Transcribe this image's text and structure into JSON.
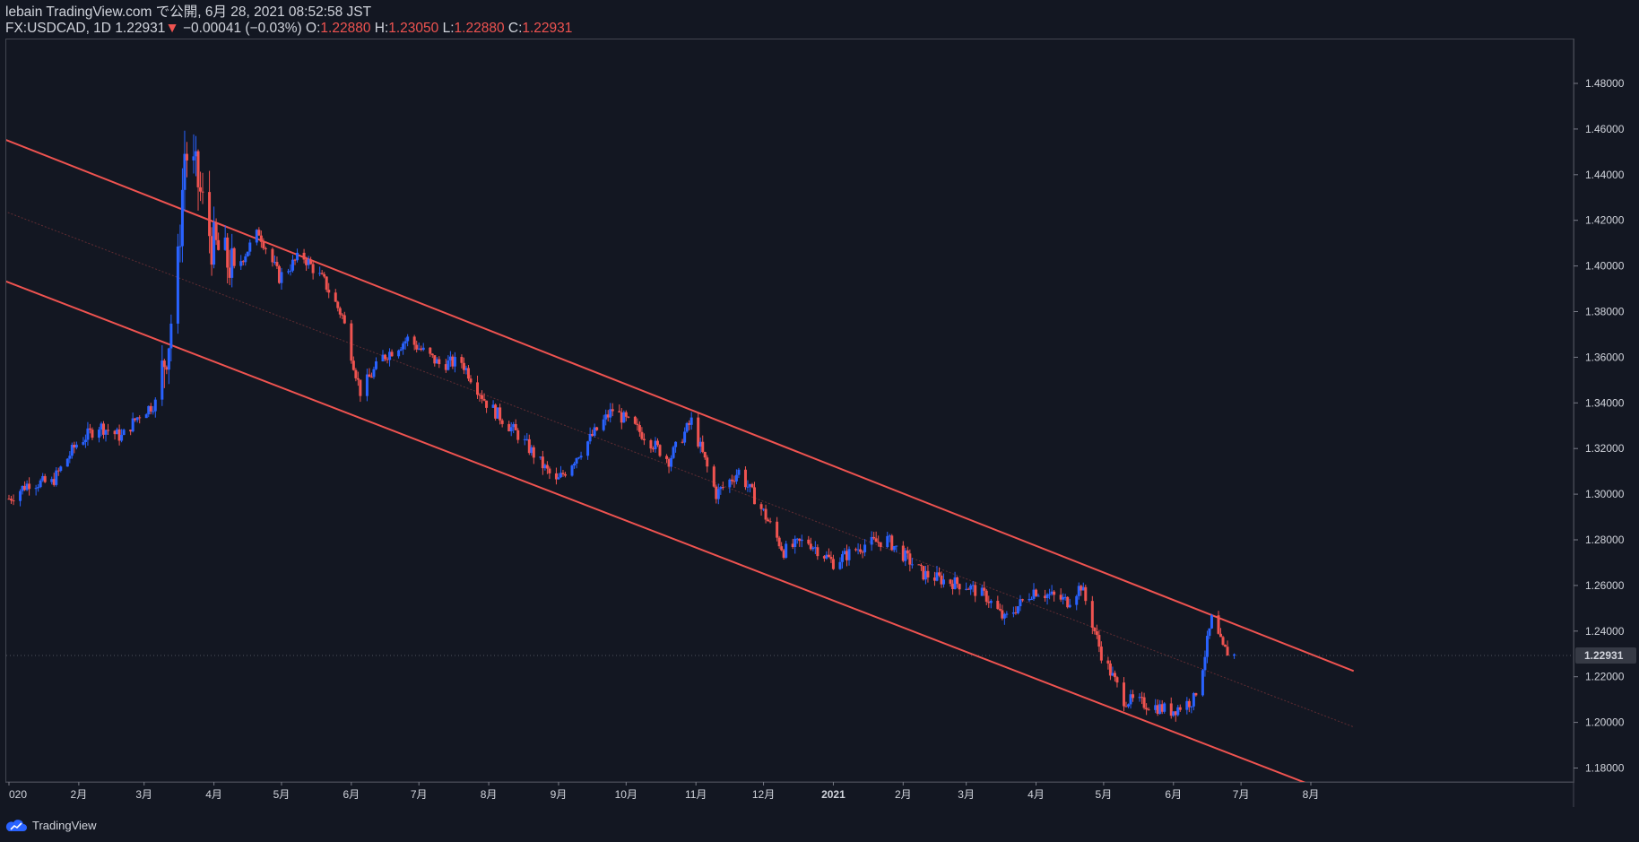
{
  "header": {
    "published": "lebain TradingView.com で公開, 6月 28, 2021 08:52:58 JST",
    "symbol": "FX:USDCAD, 1D",
    "last": "1.22931",
    "down_arrow": "▼",
    "change": "−0.00041 (−0.03%)",
    "o_label": "O:",
    "o_value": "1.22880",
    "h_label": "H:",
    "h_value": "1.23050",
    "l_label": "L:",
    "l_value": "1.22880",
    "c_label": "C:",
    "c_value": "1.22931"
  },
  "footer": {
    "brand": "TradingView",
    "logo_icon": "tradingview-cloud-icon"
  },
  "colors": {
    "up": "#2962ff",
    "down": "#ef5350",
    "channel": "#ef5350",
    "background": "#131722",
    "text": "#d1d4dc",
    "price_tag": "#363a45"
  },
  "chart_data": {
    "type": "candlestick",
    "symbol": "FX:USDCAD",
    "interval": "1D",
    "ylim": [
      1.17,
      1.49
    ],
    "y_ticks": [
      "1.48000",
      "1.46000",
      "1.44000",
      "1.42000",
      "1.40000",
      "1.38000",
      "1.36000",
      "1.34000",
      "1.32000",
      "1.30000",
      "1.28000",
      "1.26000",
      "1.24000",
      "1.22000",
      "1.20000",
      "1.18000"
    ],
    "x_ticks": [
      {
        "label": "020",
        "date": "2020-01-01"
      },
      {
        "label": "2月",
        "date": "2020-02-01"
      },
      {
        "label": "3月",
        "date": "2020-03-01"
      },
      {
        "label": "4月",
        "date": "2020-04-01"
      },
      {
        "label": "5月",
        "date": "2020-05-01"
      },
      {
        "label": "6月",
        "date": "2020-06-01"
      },
      {
        "label": "7月",
        "date": "2020-07-01"
      },
      {
        "label": "8月",
        "date": "2020-08-01"
      },
      {
        "label": "9月",
        "date": "2020-09-01"
      },
      {
        "label": "10月",
        "date": "2020-10-01"
      },
      {
        "label": "11月",
        "date": "2020-11-01"
      },
      {
        "label": "12月",
        "date": "2020-12-01"
      },
      {
        "label": "2021",
        "date": "2021-01-01"
      },
      {
        "label": "2月",
        "date": "2021-02-01"
      },
      {
        "label": "3月",
        "date": "2021-03-01"
      },
      {
        "label": "4月",
        "date": "2021-04-01"
      },
      {
        "label": "5月",
        "date": "2021-05-01"
      },
      {
        "label": "6月",
        "date": "2021-06-01"
      },
      {
        "label": "7月",
        "date": "2021-07-01"
      },
      {
        "label": "8月",
        "date": "2021-08-01"
      }
    ],
    "close_path": [
      [
        "2020-01-01",
        1.298
      ],
      [
        "2020-01-10",
        1.305
      ],
      [
        "2020-01-20",
        1.305
      ],
      [
        "2020-01-31",
        1.322
      ],
      [
        "2020-02-10",
        1.33
      ],
      [
        "2020-02-20",
        1.325
      ],
      [
        "2020-02-28",
        1.335
      ],
      [
        "2020-03-06",
        1.34
      ],
      [
        "2020-03-12",
        1.368
      ],
      [
        "2020-03-16",
        1.4
      ],
      [
        "2020-03-19",
        1.45
      ],
      [
        "2020-03-24",
        1.44
      ],
      [
        "2020-03-31",
        1.41
      ],
      [
        "2020-04-10",
        1.398
      ],
      [
        "2020-04-21",
        1.415
      ],
      [
        "2020-04-30",
        1.395
      ],
      [
        "2020-05-10",
        1.405
      ],
      [
        "2020-05-20",
        1.393
      ],
      [
        "2020-05-28",
        1.378
      ],
      [
        "2020-06-05",
        1.345
      ],
      [
        "2020-06-15",
        1.36
      ],
      [
        "2020-06-26",
        1.368
      ],
      [
        "2020-07-10",
        1.357
      ],
      [
        "2020-07-20",
        1.358
      ],
      [
        "2020-07-31",
        1.34
      ],
      [
        "2020-08-15",
        1.325
      ],
      [
        "2020-08-31",
        1.305
      ],
      [
        "2020-09-10",
        1.318
      ],
      [
        "2020-09-25",
        1.337
      ],
      [
        "2020-10-10",
        1.325
      ],
      [
        "2020-10-20",
        1.315
      ],
      [
        "2020-10-30",
        1.332
      ],
      [
        "2020-11-10",
        1.3
      ],
      [
        "2020-11-20",
        1.31
      ],
      [
        "2020-12-01",
        1.292
      ],
      [
        "2020-12-10",
        1.275
      ],
      [
        "2020-12-20",
        1.28
      ],
      [
        "2021-01-01",
        1.27
      ],
      [
        "2021-01-15",
        1.278
      ],
      [
        "2021-01-25",
        1.28
      ],
      [
        "2021-02-10",
        1.265
      ],
      [
        "2021-02-20",
        1.262
      ],
      [
        "2021-03-01",
        1.26
      ],
      [
        "2021-03-10",
        1.255
      ],
      [
        "2021-03-18",
        1.245
      ],
      [
        "2021-03-31",
        1.258
      ],
      [
        "2021-04-15",
        1.253
      ],
      [
        "2021-04-21",
        1.26
      ],
      [
        "2021-04-30",
        1.23
      ],
      [
        "2021-05-10",
        1.21
      ],
      [
        "2021-05-20",
        1.208
      ],
      [
        "2021-05-31",
        1.205
      ],
      [
        "2021-06-10",
        1.21
      ],
      [
        "2021-06-14",
        1.225
      ],
      [
        "2021-06-18",
        1.245
      ],
      [
        "2021-06-23",
        1.232
      ],
      [
        "2021-06-28",
        1.22931
      ]
    ],
    "channel": {
      "upper": [
        [
          "2019-12-30",
          1.4555
        ],
        [
          "2021-08-20",
          1.2225
        ]
      ],
      "lower": [
        [
          "2019-12-30",
          1.3935
        ],
        [
          "2021-07-31",
          1.173
        ]
      ],
      "median": [
        [
          "2019-12-30",
          1.424
        ],
        [
          "2021-08-20",
          1.198
        ]
      ]
    },
    "last_price": "1.22931"
  }
}
